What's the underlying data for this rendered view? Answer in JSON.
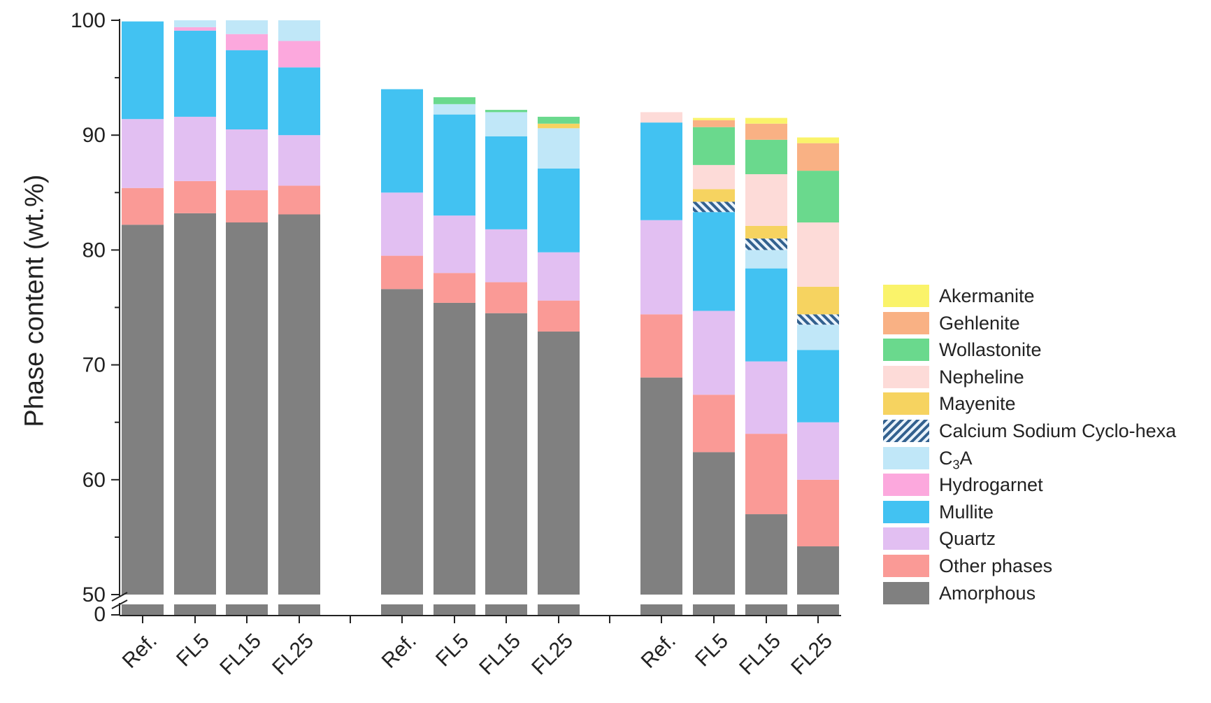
{
  "chart_data": {
    "type": "bar",
    "stacked": true,
    "ylabel": "Phase content (wt.%)",
    "xlabel": "",
    "ylim": [
      50,
      100
    ],
    "yaxis_break": {
      "lower_tick": "0",
      "break_at": 50
    },
    "yticks": [
      "50",
      "60",
      "70",
      "80",
      "90",
      "100"
    ],
    "groups": 3,
    "categories": [
      "Ref.",
      "FL5",
      "FL15",
      "FL25",
      "Ref.",
      "FL5",
      "FL15",
      "FL25",
      "Ref.",
      "FL5",
      "FL15",
      "FL25"
    ],
    "legend_position": "right",
    "series": [
      {
        "name": "Amorphous",
        "color": "#808080",
        "values": [
          82.2,
          83.2,
          82.4,
          83.1,
          76.6,
          75.4,
          74.5,
          72.9,
          68.9,
          62.4,
          57.0,
          54.2
        ]
      },
      {
        "name": "Other phases",
        "color": "#fa9a96",
        "values": [
          3.2,
          2.8,
          2.8,
          2.5,
          2.9,
          2.6,
          2.7,
          2.7,
          5.5,
          5.0,
          7.0,
          5.8
        ]
      },
      {
        "name": "Quartz",
        "color": "#e2bff2",
        "values": [
          6.0,
          5.6,
          5.3,
          4.4,
          5.5,
          5.0,
          4.6,
          4.2,
          8.2,
          7.3,
          6.3,
          5.0
        ]
      },
      {
        "name": "Mullite",
        "color": "#42c2f2",
        "values": [
          8.5,
          7.5,
          6.9,
          5.9,
          9.0,
          8.8,
          8.1,
          7.3,
          8.5,
          8.6,
          8.1,
          6.3
        ]
      },
      {
        "name": "Hydrogarnet",
        "color": "#fca8dd",
        "values": [
          0,
          0.3,
          1.4,
          2.3,
          0,
          0,
          0,
          0,
          0,
          0,
          0,
          0
        ]
      },
      {
        "name": "C3A",
        "color": "#c0e7f8",
        "values": [
          0,
          0.6,
          1.2,
          1.8,
          0,
          0.9,
          2.1,
          3.5,
          0,
          0,
          1.6,
          2.2
        ]
      },
      {
        "name": "Calcium Sodium Cyclo-hexa",
        "color": "#7ba7c8",
        "pattern": "hatch",
        "values": [
          0,
          0,
          0,
          0,
          0,
          0,
          0,
          0,
          0,
          0.9,
          1.0,
          0.9
        ]
      },
      {
        "name": "Mayenite",
        "color": "#f6d360",
        "values": [
          0,
          0,
          0,
          0,
          0,
          0,
          0,
          0.4,
          0,
          1.1,
          1.1,
          2.4
        ]
      },
      {
        "name": "Nepheline",
        "color": "#fddbd8",
        "values": [
          0,
          0,
          0,
          0,
          0,
          0,
          0,
          0,
          0.9,
          2.1,
          4.5,
          5.6
        ]
      },
      {
        "name": "Wollastonite",
        "color": "#6ad98d",
        "values": [
          0,
          0,
          0,
          0,
          0,
          0.6,
          0.2,
          0.6,
          0,
          3.3,
          3.0,
          4.5
        ]
      },
      {
        "name": "Gehlenite",
        "color": "#f9b184",
        "values": [
          0,
          0,
          0,
          0,
          0,
          0,
          0,
          0,
          0,
          0.6,
          1.4,
          2.4
        ]
      },
      {
        "name": "Akermanite",
        "color": "#faf36a",
        "values": [
          0,
          0,
          0,
          0,
          0,
          0,
          0,
          0,
          0,
          0.2,
          0.5,
          0.5
        ]
      }
    ]
  },
  "legend": {
    "items": [
      {
        "name": "Akermanite",
        "label": "Akermanite",
        "color": "#faf36a"
      },
      {
        "name": "Gehlenite",
        "label": "Gehlenite",
        "color": "#f9b184"
      },
      {
        "name": "Wollastonite",
        "label": "Wollastonite",
        "color": "#6ad98d"
      },
      {
        "name": "Nepheline",
        "label": "Nepheline",
        "color": "#fddbd8"
      },
      {
        "name": "Mayenite",
        "label": "Mayenite",
        "color": "#f6d360"
      },
      {
        "name": "Calcium Sodium Cyclo-hexa",
        "label": "Calcium Sodium Cyclo-hexa",
        "color": "#7ba7c8",
        "pattern": "hatch"
      },
      {
        "name": "C3A",
        "label_prefix": "C",
        "label_sub": "3",
        "label_suffix": "A",
        "color": "#c0e7f8"
      },
      {
        "name": "Hydrogarnet",
        "label": "Hydrogarnet",
        "color": "#fca8dd"
      },
      {
        "name": "Mullite",
        "label": "Mullite",
        "color": "#42c2f2"
      },
      {
        "name": "Quartz",
        "label": "Quartz",
        "color": "#e2bff2"
      },
      {
        "name": "Other phases",
        "label": "Other phases",
        "color": "#fa9a96"
      },
      {
        "name": "Amorphous",
        "label": "Amorphous",
        "color": "#808080"
      }
    ]
  }
}
